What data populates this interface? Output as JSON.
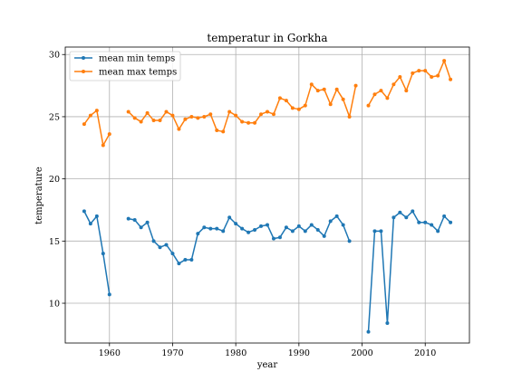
{
  "chart_data": {
    "type": "line",
    "title": "temperatur in Gorkha",
    "xlabel": "year",
    "ylabel": "temperature",
    "xlim": [
      1953,
      2017
    ],
    "ylim": [
      6.8,
      30.6
    ],
    "xticks": [
      1960,
      1970,
      1980,
      1990,
      2000,
      2010
    ],
    "yticks": [
      10,
      15,
      20,
      25,
      30
    ],
    "grid": true,
    "legend": "upper-left",
    "series": [
      {
        "name": "mean min temps",
        "color": "#1f77b4",
        "x": [
          1956,
          1957,
          1958,
          1959,
          1960,
          1961,
          1962,
          1963,
          1964,
          1965,
          1966,
          1967,
          1968,
          1969,
          1970,
          1971,
          1972,
          1973,
          1974,
          1975,
          1976,
          1977,
          1978,
          1979,
          1980,
          1981,
          1982,
          1983,
          1984,
          1985,
          1986,
          1987,
          1988,
          1989,
          1990,
          1991,
          1992,
          1993,
          1994,
          1995,
          1996,
          1997,
          1998,
          1999,
          2000,
          2001,
          2002,
          2003,
          2004,
          2005,
          2006,
          2007,
          2008,
          2009,
          2010,
          2011,
          2012,
          2013,
          2014
        ],
        "y": [
          17.4,
          16.4,
          17.0,
          14.0,
          10.7,
          null,
          null,
          16.8,
          16.7,
          16.1,
          16.5,
          15.0,
          14.5,
          14.7,
          14.0,
          13.2,
          13.5,
          13.5,
          15.6,
          16.1,
          16.0,
          16.0,
          15.8,
          16.9,
          16.4,
          16.0,
          15.7,
          15.9,
          16.2,
          16.3,
          15.2,
          15.3,
          16.1,
          15.8,
          16.2,
          15.8,
          16.3,
          15.9,
          15.4,
          16.6,
          17.0,
          16.3,
          15.0,
          null,
          null,
          7.7,
          15.8,
          15.8,
          8.4,
          16.9,
          17.3,
          16.9,
          17.4,
          16.5,
          16.5,
          16.3,
          15.8,
          17.0,
          16.5
        ]
      },
      {
        "name": "mean max temps",
        "color": "#ff7f0e",
        "x": [
          1956,
          1957,
          1958,
          1959,
          1960,
          1961,
          1962,
          1963,
          1964,
          1965,
          1966,
          1967,
          1968,
          1969,
          1970,
          1971,
          1972,
          1973,
          1974,
          1975,
          1976,
          1977,
          1978,
          1979,
          1980,
          1981,
          1982,
          1983,
          1984,
          1985,
          1986,
          1987,
          1988,
          1989,
          1990,
          1991,
          1992,
          1993,
          1994,
          1995,
          1996,
          1997,
          1998,
          1999,
          2000,
          2001,
          2002,
          2003,
          2004,
          2005,
          2006,
          2007,
          2008,
          2009,
          2010,
          2011,
          2012,
          2013,
          2014
        ],
        "y": [
          24.4,
          25.1,
          25.5,
          22.7,
          23.6,
          null,
          null,
          25.4,
          24.9,
          24.6,
          25.3,
          24.7,
          24.7,
          25.4,
          25.1,
          24.0,
          24.8,
          25.0,
          24.9,
          25.0,
          25.2,
          23.9,
          23.8,
          25.4,
          25.1,
          24.6,
          24.5,
          24.5,
          25.2,
          25.4,
          25.2,
          26.5,
          26.3,
          25.7,
          25.6,
          25.9,
          27.6,
          27.1,
          27.2,
          26.0,
          27.2,
          26.4,
          25.0,
          27.5,
          null,
          25.9,
          26.8,
          27.1,
          26.5,
          27.6,
          28.2,
          27.1,
          28.5,
          28.7,
          28.7,
          28.2,
          28.3,
          29.5,
          28.0
        ]
      }
    ]
  }
}
